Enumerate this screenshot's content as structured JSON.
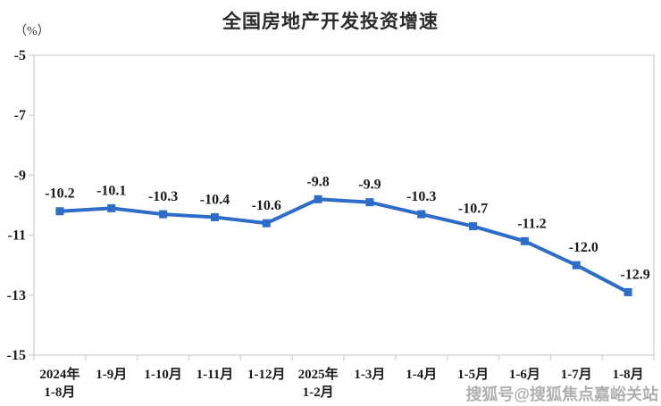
{
  "title": "全国房地产开发投资增速",
  "unit_label": "（%）",
  "watermark": "搜狐号@搜狐焦点嘉峪关站",
  "colors": {
    "line": "#2d6cc8",
    "marker": "#2d6cc8",
    "axis": "#d6d6d6",
    "label_text": "#1a1a1a",
    "title_text": "#2b2b2b",
    "watermark_text": "#b0b0b0"
  },
  "chart_data": {
    "type": "line",
    "title": "全国房地产开发投资增速",
    "ylabel": "（%）",
    "xlabel": "",
    "categories": [
      "2024年\n1-8月",
      "1-9月",
      "1-10月",
      "1-11月",
      "1-12月",
      "2025年\n1-2月",
      "1-3月",
      "1-4月",
      "1-5月",
      "1-6月",
      "1-7月",
      "1-8月"
    ],
    "values": [
      -10.2,
      -10.1,
      -10.3,
      -10.4,
      -10.6,
      -9.8,
      -9.9,
      -10.3,
      -10.7,
      -11.2,
      -12.0,
      -12.9
    ],
    "data_labels": [
      "-10.2",
      "-10.1",
      "-10.3",
      "-10.4",
      "-10.6",
      "-9.8",
      "-9.9",
      "-10.3",
      "-10.7",
      "-11.2",
      "-12.0",
      "-12.9"
    ],
    "ylim": [
      -15,
      -5
    ],
    "yticks": [
      -5,
      -7,
      -9,
      -11,
      -13,
      -15
    ],
    "grid": false,
    "legend_position": "none",
    "marker": "square",
    "line_color": "#2d6cc8"
  }
}
